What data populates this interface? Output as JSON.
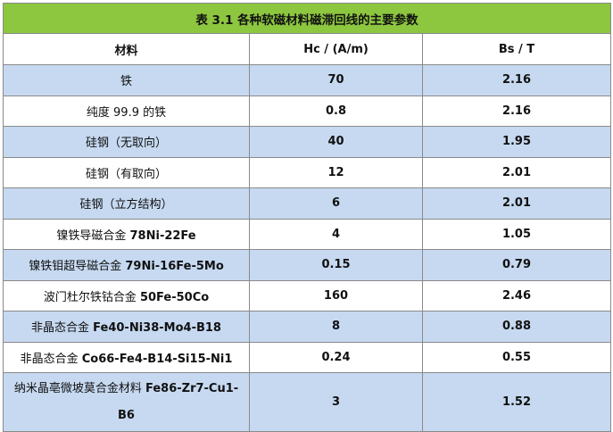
{
  "table": {
    "title": "表 3.1 各种软磁材料磁滞回线的主要参数",
    "headers": [
      "材料",
      "Hc / (A/m)",
      "Bs / T"
    ],
    "rows": [
      {
        "material": "铁",
        "material_code": "",
        "hc": "70",
        "bs": "2.16"
      },
      {
        "material": "纯度 99.9 的铁",
        "material_code": "",
        "hc": "0.8",
        "bs": "2.16"
      },
      {
        "material": "硅钢（无取向）",
        "material_code": "",
        "hc": "40",
        "bs": "1.95"
      },
      {
        "material": "硅钢（有取向）",
        "material_code": "",
        "hc": "12",
        "bs": "2.01"
      },
      {
        "material": "硅钢（立方结构）",
        "material_code": "",
        "hc": "6",
        "bs": "2.01"
      },
      {
        "material": "镍铁导磁合金 ",
        "material_code": "78Ni-22Fe",
        "hc": "4",
        "bs": "1.05"
      },
      {
        "material": "镍铁钼超导磁合金 ",
        "material_code": "79Ni-16Fe-5Mo",
        "hc": "0.15",
        "bs": "0.79"
      },
      {
        "material": "波门杜尔铁钴合金 ",
        "material_code": "50Fe-50Co",
        "hc": "160",
        "bs": "2.46"
      },
      {
        "material": "非晶态合金 ",
        "material_code": "Fe40-Ni38-Mo4-B18",
        "hc": "8",
        "bs": "0.88"
      },
      {
        "material": "非晶态合金 ",
        "material_code": "Co66-Fe4-B14-Si15-Ni1",
        "hc": "0.24",
        "bs": "0.55"
      },
      {
        "material": "纳米晶亳微坡莫合金材料 ",
        "material_code": "Fe86-Zr7-Cu1-B6",
        "hc": "3",
        "bs": "1.52"
      }
    ]
  },
  "colors": {
    "title_bg": "#8dc63f",
    "alt_row_bg": "#c6d9f1",
    "border": "#8a8a8a"
  }
}
